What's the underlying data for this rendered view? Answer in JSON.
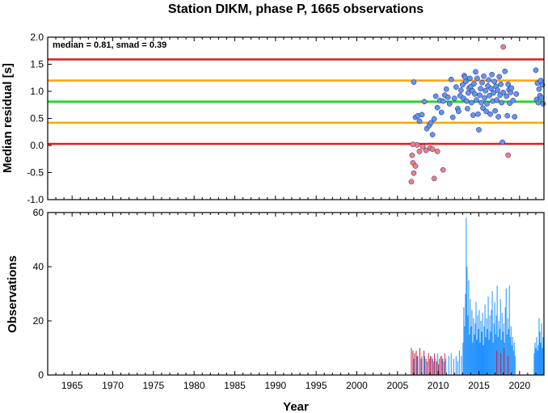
{
  "chart_data": [
    {
      "type": "scatter",
      "title": "Station DIKM, phase P, 1665 observations",
      "ylabel": "Median residual [s]",
      "annotation": "median = 0.81, smad = 0.39",
      "xlim": [
        1962,
        2023
      ],
      "ylim": [
        -1.0,
        2.0
      ],
      "y_ticks": [
        "2.0",
        "1.5",
        "1.0",
        "0.5",
        "0.0",
        "-0.5",
        "-1.0"
      ],
      "reference_lines": [
        {
          "y": 1.59,
          "color": "#e41a1c"
        },
        {
          "y": 1.2,
          "color": "#ffa500"
        },
        {
          "y": 0.81,
          "color": "#00e000"
        },
        {
          "y": 0.42,
          "color": "#ffa500"
        },
        {
          "y": 0.03,
          "color": "#e41a1c"
        }
      ],
      "series": [
        {
          "color": "#6495ed",
          "points": [
            [
              2007.0,
              1.17
            ],
            [
              2007.2,
              0.52
            ],
            [
              2007.5,
              0.55
            ],
            [
              2007.7,
              0.45
            ],
            [
              2008.0,
              0.57
            ],
            [
              2008.3,
              0.81
            ],
            [
              2008.6,
              0.31
            ],
            [
              2008.9,
              0.37
            ],
            [
              2009.1,
              0.42
            ],
            [
              2009.3,
              0.2
            ],
            [
              2009.5,
              0.49
            ],
            [
              2009.7,
              0.91
            ],
            [
              2009.9,
              0.7
            ],
            [
              2010.2,
              0.83
            ],
            [
              2010.4,
              0.61
            ],
            [
              2010.6,
              0.82
            ],
            [
              2010.8,
              0.93
            ],
            [
              2011.0,
              1.04
            ],
            [
              2011.2,
              0.89
            ],
            [
              2011.4,
              0.77
            ],
            [
              2011.6,
              1.22
            ],
            [
              2011.8,
              0.52
            ],
            [
              2012.0,
              0.87
            ],
            [
              2012.2,
              1.08
            ],
            [
              2012.4,
              0.68
            ],
            [
              2012.5,
              0.63
            ],
            [
              2012.7,
              0.92
            ],
            [
              2012.8,
              1.02
            ],
            [
              2013.0,
              1.12
            ],
            [
              2013.1,
              0.87
            ],
            [
              2013.2,
              1.29
            ],
            [
              2013.3,
              1.26
            ],
            [
              2013.4,
              1.18
            ],
            [
              2013.5,
              0.82
            ],
            [
              2013.6,
              0.68
            ],
            [
              2013.7,
              0.97
            ],
            [
              2013.8,
              1.06
            ],
            [
              2013.9,
              1.24
            ],
            [
              2014.0,
              1.09
            ],
            [
              2014.1,
              0.79
            ],
            [
              2014.2,
              1.01
            ],
            [
              2014.3,
              0.56
            ],
            [
              2014.4,
              1.14
            ],
            [
              2014.5,
              0.95
            ],
            [
              2014.6,
              1.36
            ],
            [
              2014.7,
              0.84
            ],
            [
              2014.8,
              1.24
            ],
            [
              2014.9,
              0.58
            ],
            [
              2015.0,
              0.29
            ],
            [
              2015.1,
              0.93
            ],
            [
              2015.2,
              1.05
            ],
            [
              2015.3,
              0.79
            ],
            [
              2015.4,
              1.16
            ],
            [
              2015.5,
              0.69
            ],
            [
              2015.6,
              1.28
            ],
            [
              2015.7,
              0.88
            ],
            [
              2015.8,
              1.01
            ],
            [
              2015.9,
              0.63
            ],
            [
              2016.0,
              0.77
            ],
            [
              2016.1,
              1.1
            ],
            [
              2016.2,
              1.21
            ],
            [
              2016.3,
              0.92
            ],
            [
              2016.4,
              0.58
            ],
            [
              2016.5,
              1.05
            ],
            [
              2016.6,
              1.31
            ],
            [
              2016.7,
              0.82
            ],
            [
              2016.8,
              0.97
            ],
            [
              2016.9,
              1.18
            ],
            [
              2017.0,
              0.64
            ],
            [
              2017.1,
              1.09
            ],
            [
              2017.2,
              0.84
            ],
            [
              2017.3,
              1.02
            ],
            [
              2017.4,
              0.53
            ],
            [
              2017.5,
              1.27
            ],
            [
              2017.6,
              0.93
            ],
            [
              2017.7,
              1.13
            ],
            [
              2017.8,
              0.79
            ],
            [
              2017.9,
              0.06
            ],
            [
              2018.0,
              0.98
            ],
            [
              2018.2,
              1.37
            ],
            [
              2018.4,
              0.91
            ],
            [
              2018.5,
              0.55
            ],
            [
              2018.6,
              1.13
            ],
            [
              2018.7,
              1.03
            ],
            [
              2018.8,
              0.78
            ],
            [
              2018.9,
              0.98
            ],
            [
              2019.0,
              1.06
            ],
            [
              2019.2,
              0.83
            ],
            [
              2019.4,
              0.53
            ],
            [
              2019.6,
              0.95
            ],
            [
              2022.0,
              1.39
            ],
            [
              2022.1,
              0.85
            ],
            [
              2022.2,
              1.15
            ],
            [
              2022.3,
              0.79
            ],
            [
              2022.4,
              1.04
            ],
            [
              2022.5,
              0.92
            ],
            [
              2022.6,
              1.2
            ],
            [
              2022.7,
              0.88
            ],
            [
              2022.8,
              1.12
            ],
            [
              2022.9,
              0.77
            ]
          ]
        },
        {
          "color": "#f08080",
          "points": [
            [
              2006.7,
              -0.67
            ],
            [
              2006.8,
              -0.18
            ],
            [
              2006.9,
              -0.32
            ],
            [
              2007.0,
              -0.51
            ],
            [
              2007.2,
              -0.38
            ],
            [
              2007.4,
              0.01
            ],
            [
              2007.7,
              -0.11
            ],
            [
              2008.1,
              -0.02
            ],
            [
              2008.5,
              -0.09
            ],
            [
              2009.0,
              -0.05
            ],
            [
              2009.3,
              -0.07
            ],
            [
              2009.5,
              -0.61
            ],
            [
              2009.9,
              -0.11
            ],
            [
              2010.6,
              -0.45
            ],
            [
              2018.0,
              1.82
            ],
            [
              2018.6,
              -0.18
            ],
            [
              2006.9,
              0.02
            ]
          ]
        }
      ]
    },
    {
      "type": "bar",
      "ylabel": "Observations",
      "xlabel": "Year",
      "xlim": [
        1962,
        2023
      ],
      "ylim": [
        0,
        60
      ],
      "y_ticks": [
        "60",
        "40",
        "20",
        "0"
      ],
      "x_ticks": [
        "1965",
        "1970",
        "1975",
        "1980",
        "1985",
        "1990",
        "1995",
        "2000",
        "2005",
        "2010",
        "2015",
        "2020"
      ],
      "colors": {
        "above_threshold": "#1e90ff",
        "below_threshold": "#c81e3c"
      },
      "bars": [
        [
          2006.7,
          10,
          "r"
        ],
        [
          2006.9,
          9,
          "r"
        ],
        [
          2007.1,
          8,
          "r"
        ],
        [
          2007.3,
          9,
          "r"
        ],
        [
          2007.5,
          7,
          "r"
        ],
        [
          2007.75,
          10,
          "r"
        ],
        [
          2008.0,
          7,
          "r"
        ],
        [
          2008.25,
          9,
          "r"
        ],
        [
          2008.5,
          6,
          "r"
        ],
        [
          2008.8,
          8,
          "r"
        ],
        [
          2009.05,
          7,
          "r"
        ],
        [
          2009.3,
          6,
          "r"
        ],
        [
          2009.55,
          8,
          "r"
        ],
        [
          2009.8,
          5,
          "r"
        ],
        [
          2010.05,
          4,
          "r"
        ],
        [
          2010.3,
          7,
          "r"
        ],
        [
          2010.55,
          6,
          "r"
        ],
        [
          2010.8,
          8,
          "r"
        ],
        [
          2007.0,
          6,
          "b"
        ],
        [
          2007.4,
          7,
          "b"
        ],
        [
          2007.9,
          6,
          "b"
        ],
        [
          2008.35,
          7,
          "b"
        ],
        [
          2008.65,
          5,
          "b"
        ],
        [
          2008.95,
          6,
          "b"
        ],
        [
          2009.2,
          7,
          "b"
        ],
        [
          2009.45,
          5,
          "b"
        ],
        [
          2009.7,
          6,
          "b"
        ],
        [
          2009.95,
          8,
          "b"
        ],
        [
          2010.15,
          6,
          "b"
        ],
        [
          2010.45,
          7,
          "b"
        ],
        [
          2010.7,
          5,
          "b"
        ],
        [
          2010.95,
          6,
          "b"
        ],
        [
          2011.3,
          7,
          "b"
        ],
        [
          2011.6,
          8,
          "b"
        ],
        [
          2011.9,
          6,
          "b"
        ],
        [
          2012.2,
          7,
          "b"
        ],
        [
          2012.4,
          5,
          "b"
        ],
        [
          2012.6,
          9,
          "b"
        ],
        [
          2012.85,
          7,
          "b"
        ],
        [
          2013.05,
          12,
          "b"
        ],
        [
          2013.15,
          25,
          "b"
        ],
        [
          2013.25,
          18,
          "b"
        ],
        [
          2013.35,
          30,
          "b"
        ],
        [
          2013.45,
          58,
          "b"
        ],
        [
          2013.55,
          40,
          "b"
        ],
        [
          2013.65,
          22,
          "b"
        ],
        [
          2013.75,
          35,
          "b"
        ],
        [
          2013.85,
          15,
          "b"
        ],
        [
          2013.95,
          28,
          "b"
        ],
        [
          2014.05,
          18,
          "b"
        ],
        [
          2014.15,
          24,
          "b"
        ],
        [
          2014.25,
          12,
          "b"
        ],
        [
          2014.35,
          21,
          "b"
        ],
        [
          2014.45,
          15,
          "b"
        ],
        [
          2014.55,
          19,
          "b"
        ],
        [
          2014.65,
          27,
          "b"
        ],
        [
          2014.75,
          13,
          "b"
        ],
        [
          2014.85,
          22,
          "b"
        ],
        [
          2014.95,
          17,
          "b"
        ],
        [
          2015.05,
          24,
          "b"
        ],
        [
          2015.15,
          12,
          "b"
        ],
        [
          2015.25,
          20,
          "b"
        ],
        [
          2015.35,
          16,
          "b"
        ],
        [
          2015.45,
          23,
          "b"
        ],
        [
          2015.55,
          11,
          "b"
        ],
        [
          2015.65,
          18,
          "b"
        ],
        [
          2015.75,
          26,
          "b"
        ],
        [
          2015.85,
          14,
          "b"
        ],
        [
          2015.95,
          21,
          "b"
        ],
        [
          2016.05,
          17,
          "b"
        ],
        [
          2016.15,
          29,
          "b"
        ],
        [
          2016.25,
          13,
          "b"
        ],
        [
          2016.35,
          22,
          "b"
        ],
        [
          2016.45,
          16,
          "b"
        ],
        [
          2016.55,
          24,
          "b"
        ],
        [
          2016.65,
          31,
          "b"
        ],
        [
          2016.75,
          12,
          "b"
        ],
        [
          2016.85,
          19,
          "b"
        ],
        [
          2016.95,
          27,
          "b"
        ],
        [
          2017.05,
          15,
          "b"
        ],
        [
          2017.15,
          22,
          "b"
        ],
        [
          2017.25,
          33,
          "b"
        ],
        [
          2017.35,
          14,
          "b"
        ],
        [
          2017.45,
          20,
          "b"
        ],
        [
          2017.55,
          17,
          "b"
        ],
        [
          2017.65,
          28,
          "b"
        ],
        [
          2017.75,
          13,
          "b"
        ],
        [
          2017.85,
          23,
          "b"
        ],
        [
          2017.95,
          16,
          "b"
        ],
        [
          2018.05,
          19,
          "b"
        ],
        [
          2018.15,
          12,
          "b"
        ],
        [
          2018.25,
          25,
          "b"
        ],
        [
          2018.35,
          32,
          "b"
        ],
        [
          2018.45,
          15,
          "b"
        ],
        [
          2018.55,
          21,
          "b"
        ],
        [
          2018.65,
          17,
          "b"
        ],
        [
          2018.75,
          33,
          "b"
        ],
        [
          2018.85,
          14,
          "b"
        ],
        [
          2018.95,
          18,
          "b"
        ],
        [
          2019.05,
          11,
          "b"
        ],
        [
          2019.15,
          14,
          "b"
        ],
        [
          2019.25,
          9,
          "b"
        ],
        [
          2019.35,
          12,
          "b"
        ],
        [
          2019.45,
          7,
          "b"
        ],
        [
          2017.2,
          9,
          "r"
        ],
        [
          2017.7,
          8,
          "r"
        ],
        [
          2018.1,
          10,
          "r"
        ],
        [
          2018.6,
          7,
          "r"
        ],
        [
          2021.8,
          8,
          "b"
        ],
        [
          2021.9,
          12,
          "b"
        ],
        [
          2022.0,
          10,
          "b"
        ],
        [
          2022.1,
          14,
          "b"
        ],
        [
          2022.2,
          9,
          "b"
        ],
        [
          2022.3,
          11,
          "b"
        ],
        [
          2022.4,
          21,
          "b"
        ],
        [
          2022.5,
          16,
          "b"
        ],
        [
          2022.6,
          12,
          "b"
        ],
        [
          2022.7,
          19,
          "b"
        ],
        [
          2022.8,
          10,
          "b"
        ],
        [
          2022.9,
          14,
          "b"
        ]
      ]
    }
  ]
}
